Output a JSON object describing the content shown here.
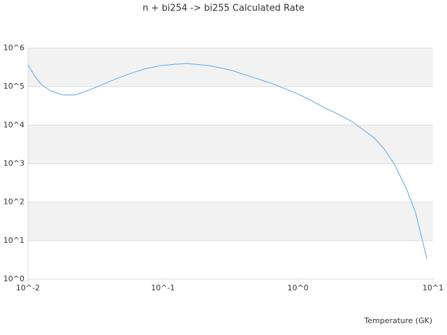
{
  "chart_data": {
    "type": "line",
    "title": "n + bi254 -> bi255 Calculated Rate",
    "xlabel": "Temperature (GK)",
    "xscale": "log",
    "yscale": "log",
    "grid": true,
    "xlim": [
      0.01,
      10
    ],
    "xticks": [
      {
        "value": 0.01,
        "label": "10^-2"
      },
      {
        "value": 0.1,
        "label": "10^-1"
      },
      {
        "value": 1,
        "label": "10^0"
      },
      {
        "value": 10,
        "label": "10^1"
      }
    ],
    "ylim": [
      1,
      1000000
    ],
    "yticks": [
      {
        "value": 1,
        "label": "10^0"
      },
      {
        "value": 10,
        "label": "10^1"
      },
      {
        "value": 100,
        "label": "10^2"
      },
      {
        "value": 1000,
        "label": "10^3"
      },
      {
        "value": 10000,
        "label": "10^4"
      },
      {
        "value": 100000,
        "label": "10^5"
      },
      {
        "value": 1000000,
        "label": "10^6"
      }
    ],
    "series": [
      {
        "color": "#5aa6e6",
        "x": [
          0.01,
          0.0113,
          0.0127,
          0.0147,
          0.0181,
          0.0225,
          0.0292,
          0.037,
          0.047,
          0.0597,
          0.0758,
          0.096,
          0.122,
          0.151,
          0.221,
          0.316,
          0.452,
          0.646,
          0.925,
          1.17,
          1.49,
          2.0,
          2.55,
          3.04,
          3.64,
          4.35,
          5.2,
          6.37,
          7.43,
          9.0
        ],
        "values": [
          370000,
          180000,
          110000,
          78000,
          61000,
          61000,
          85000,
          120000,
          170000,
          230000,
          300000,
          350000,
          380000,
          400000,
          350000,
          270000,
          180000,
          120000,
          72000,
          50000,
          31000,
          19000,
          12000,
          7600,
          4800,
          2400,
          940,
          218,
          53,
          3.4
        ]
      }
    ]
  }
}
